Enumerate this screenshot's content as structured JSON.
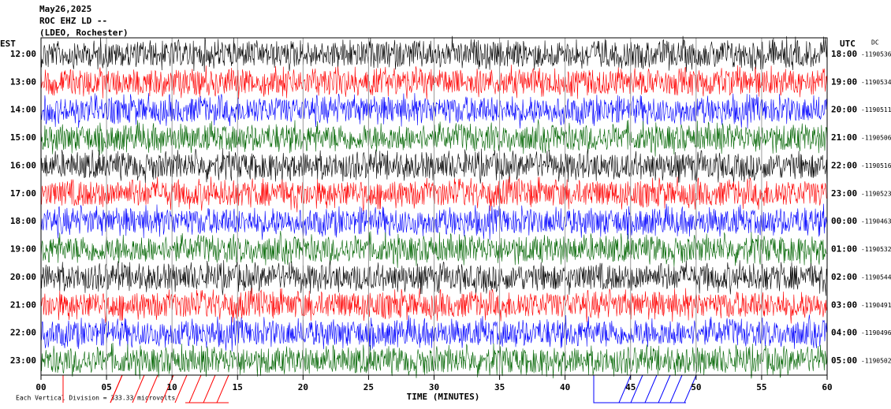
{
  "header": {
    "date": "May26,2025",
    "station": "ROC EHZ LD --",
    "location": "(LDEO, Rochester)"
  },
  "left_axis_title": "EST",
  "right_axis_title": "UTC",
  "dc_label": "DC",
  "rows": [
    {
      "est": "12:00",
      "utc": "18:00",
      "dc": "-1190536",
      "color": "#000000"
    },
    {
      "est": "13:00",
      "utc": "19:00",
      "dc": "-1190534",
      "color": "#ff0000"
    },
    {
      "est": "14:00",
      "utc": "20:00",
      "dc": "-1190511",
      "color": "#0000ff"
    },
    {
      "est": "15:00",
      "utc": "21:00",
      "dc": "-1190506",
      "color": "#006400"
    },
    {
      "est": "16:00",
      "utc": "22:00",
      "dc": "-1190516",
      "color": "#000000"
    },
    {
      "est": "17:00",
      "utc": "23:00",
      "dc": "-1190523",
      "color": "#ff0000"
    },
    {
      "est": "18:00",
      "utc": "00:00",
      "dc": "-1190463",
      "color": "#0000ff"
    },
    {
      "est": "19:00",
      "utc": "01:00",
      "dc": "-1190532",
      "color": "#006400"
    },
    {
      "est": "20:00",
      "utc": "02:00",
      "dc": "-1190544",
      "color": "#000000"
    },
    {
      "est": "21:00",
      "utc": "03:00",
      "dc": "-1190491",
      "color": "#ff0000"
    },
    {
      "est": "22:00",
      "utc": "04:00",
      "dc": "-1190496",
      "color": "#0000ff"
    },
    {
      "est": "23:00",
      "utc": "05:00",
      "dc": "-1190502",
      "color": "#006400"
    }
  ],
  "x_axis": {
    "title": "TIME (MINUTES)",
    "ticks": [
      "00",
      "05",
      "10",
      "15",
      "20",
      "25",
      "30",
      "35",
      "40",
      "45",
      "50",
      "55",
      "60"
    ]
  },
  "scale_note": "Each Vertical Division = 333.33 microvolts"
}
